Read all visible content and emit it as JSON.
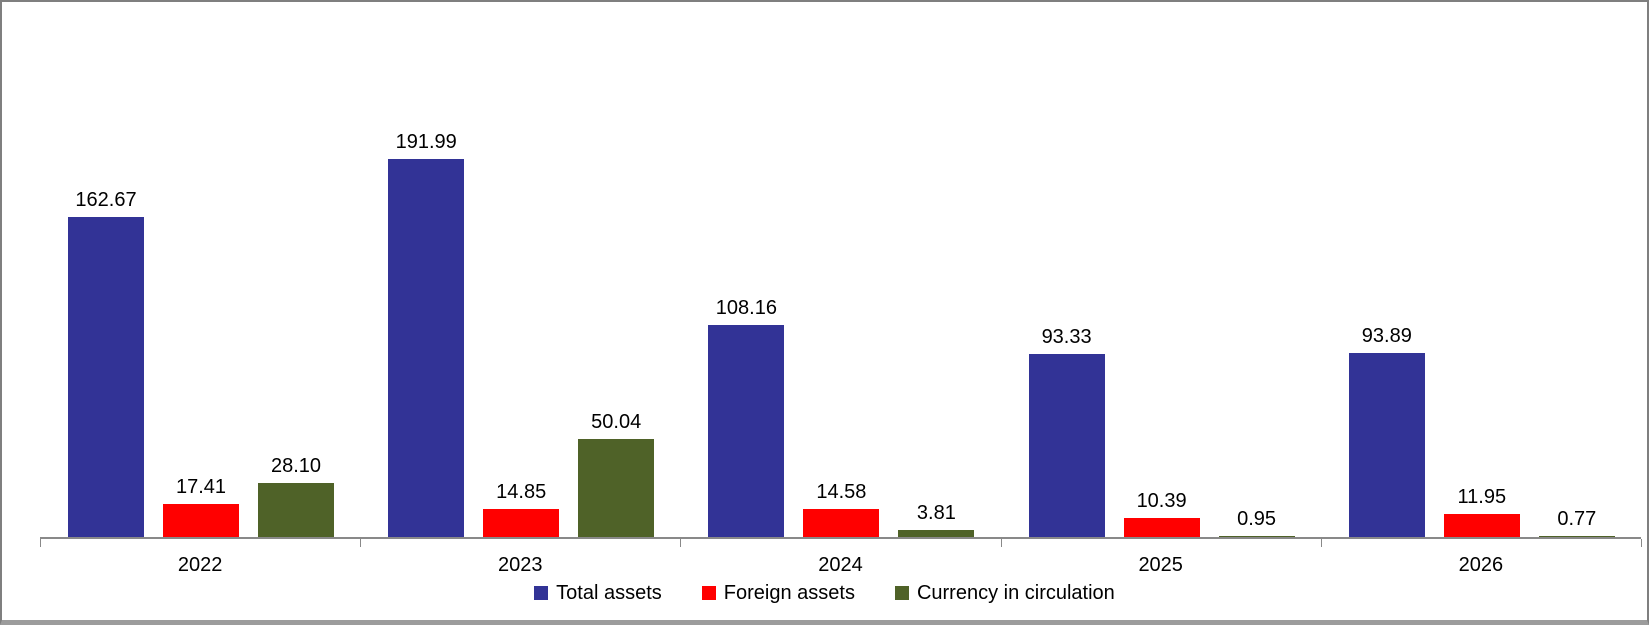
{
  "chart_data": {
    "type": "bar",
    "title": "",
    "xlabel": "",
    "ylabel": "",
    "categories": [
      "2022",
      "2023",
      "2024",
      "2025",
      "2026"
    ],
    "series": [
      {
        "name": "Total assets",
        "color": "#323396",
        "values": [
          162.67,
          191.99,
          108.16,
          93.33,
          93.89
        ]
      },
      {
        "name": "Foreign assets",
        "color": "#ff0000",
        "values": [
          17.41,
          14.85,
          14.58,
          10.39,
          11.95
        ]
      },
      {
        "name": "Currency in circulation",
        "color": "#4f6228",
        "values": [
          28.1,
          50.04,
          3.81,
          0.95,
          0.77
        ]
      }
    ],
    "data_labels_visible": true,
    "data_label_decimals": 2,
    "ylim": [
      0,
      250
    ],
    "grid": false,
    "y_axis_visible": false,
    "legend_position": "bottom"
  }
}
